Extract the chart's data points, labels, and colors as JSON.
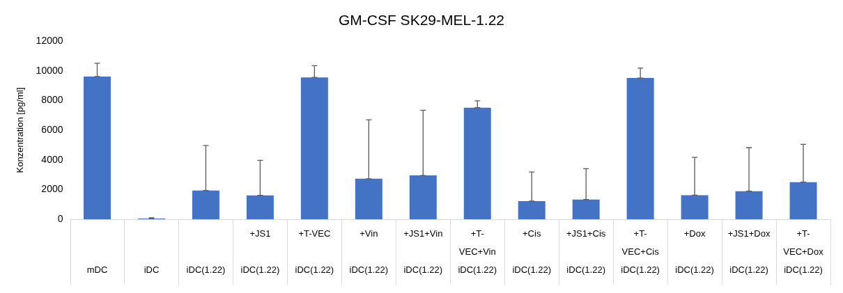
{
  "chart_data": {
    "type": "bar",
    "title": "GM-CSF SK29-MEL-1.22",
    "ylabel": "Konzentration [pg/ml]",
    "categories": [
      "mDC",
      "iDC",
      "iDC(1.22)",
      "+JS1\niDC(1.22)",
      "+T-VEC\niDC(1.22)",
      "+Vin\niDC(1.22)",
      "+JS1+Vin\niDC(1.22)",
      "+T-\nVEC+Vin\niDC(1.22)",
      "+Cis\niDC(1.22)",
      "+JS1+Cis\niDC(1.22)",
      "+T-\nVEC+Cis\niDC(1.22)",
      "+Dox\niDC(1.22)",
      "+JS1+Dox\niDC(1.22)",
      "+T-\nVEC+Dox\niDC(1.22)"
    ],
    "values": [
      9620,
      50,
      1940,
      1610,
      9560,
      2730,
      2950,
      7520,
      1220,
      1330,
      9520,
      1620,
      1890,
      2500
    ],
    "errors": [
      [
        9620,
        10510
      ],
      [
        50,
        100
      ],
      [
        1940,
        4970
      ],
      [
        1610,
        3970
      ],
      [
        9560,
        10350
      ],
      [
        2730,
        6700
      ],
      [
        2950,
        7350
      ],
      [
        7520,
        7980
      ],
      [
        1220,
        3180
      ],
      [
        1330,
        3410
      ],
      [
        9520,
        10190
      ],
      [
        1620,
        4170
      ],
      [
        1890,
        4820
      ],
      [
        2500,
        5050
      ]
    ],
    "color": "#4472c4",
    "ylim": [
      0,
      12000
    ],
    "yticks": [
      0,
      2000,
      4000,
      6000,
      8000,
      10000,
      12000
    ],
    "grid": false,
    "legend": false
  }
}
